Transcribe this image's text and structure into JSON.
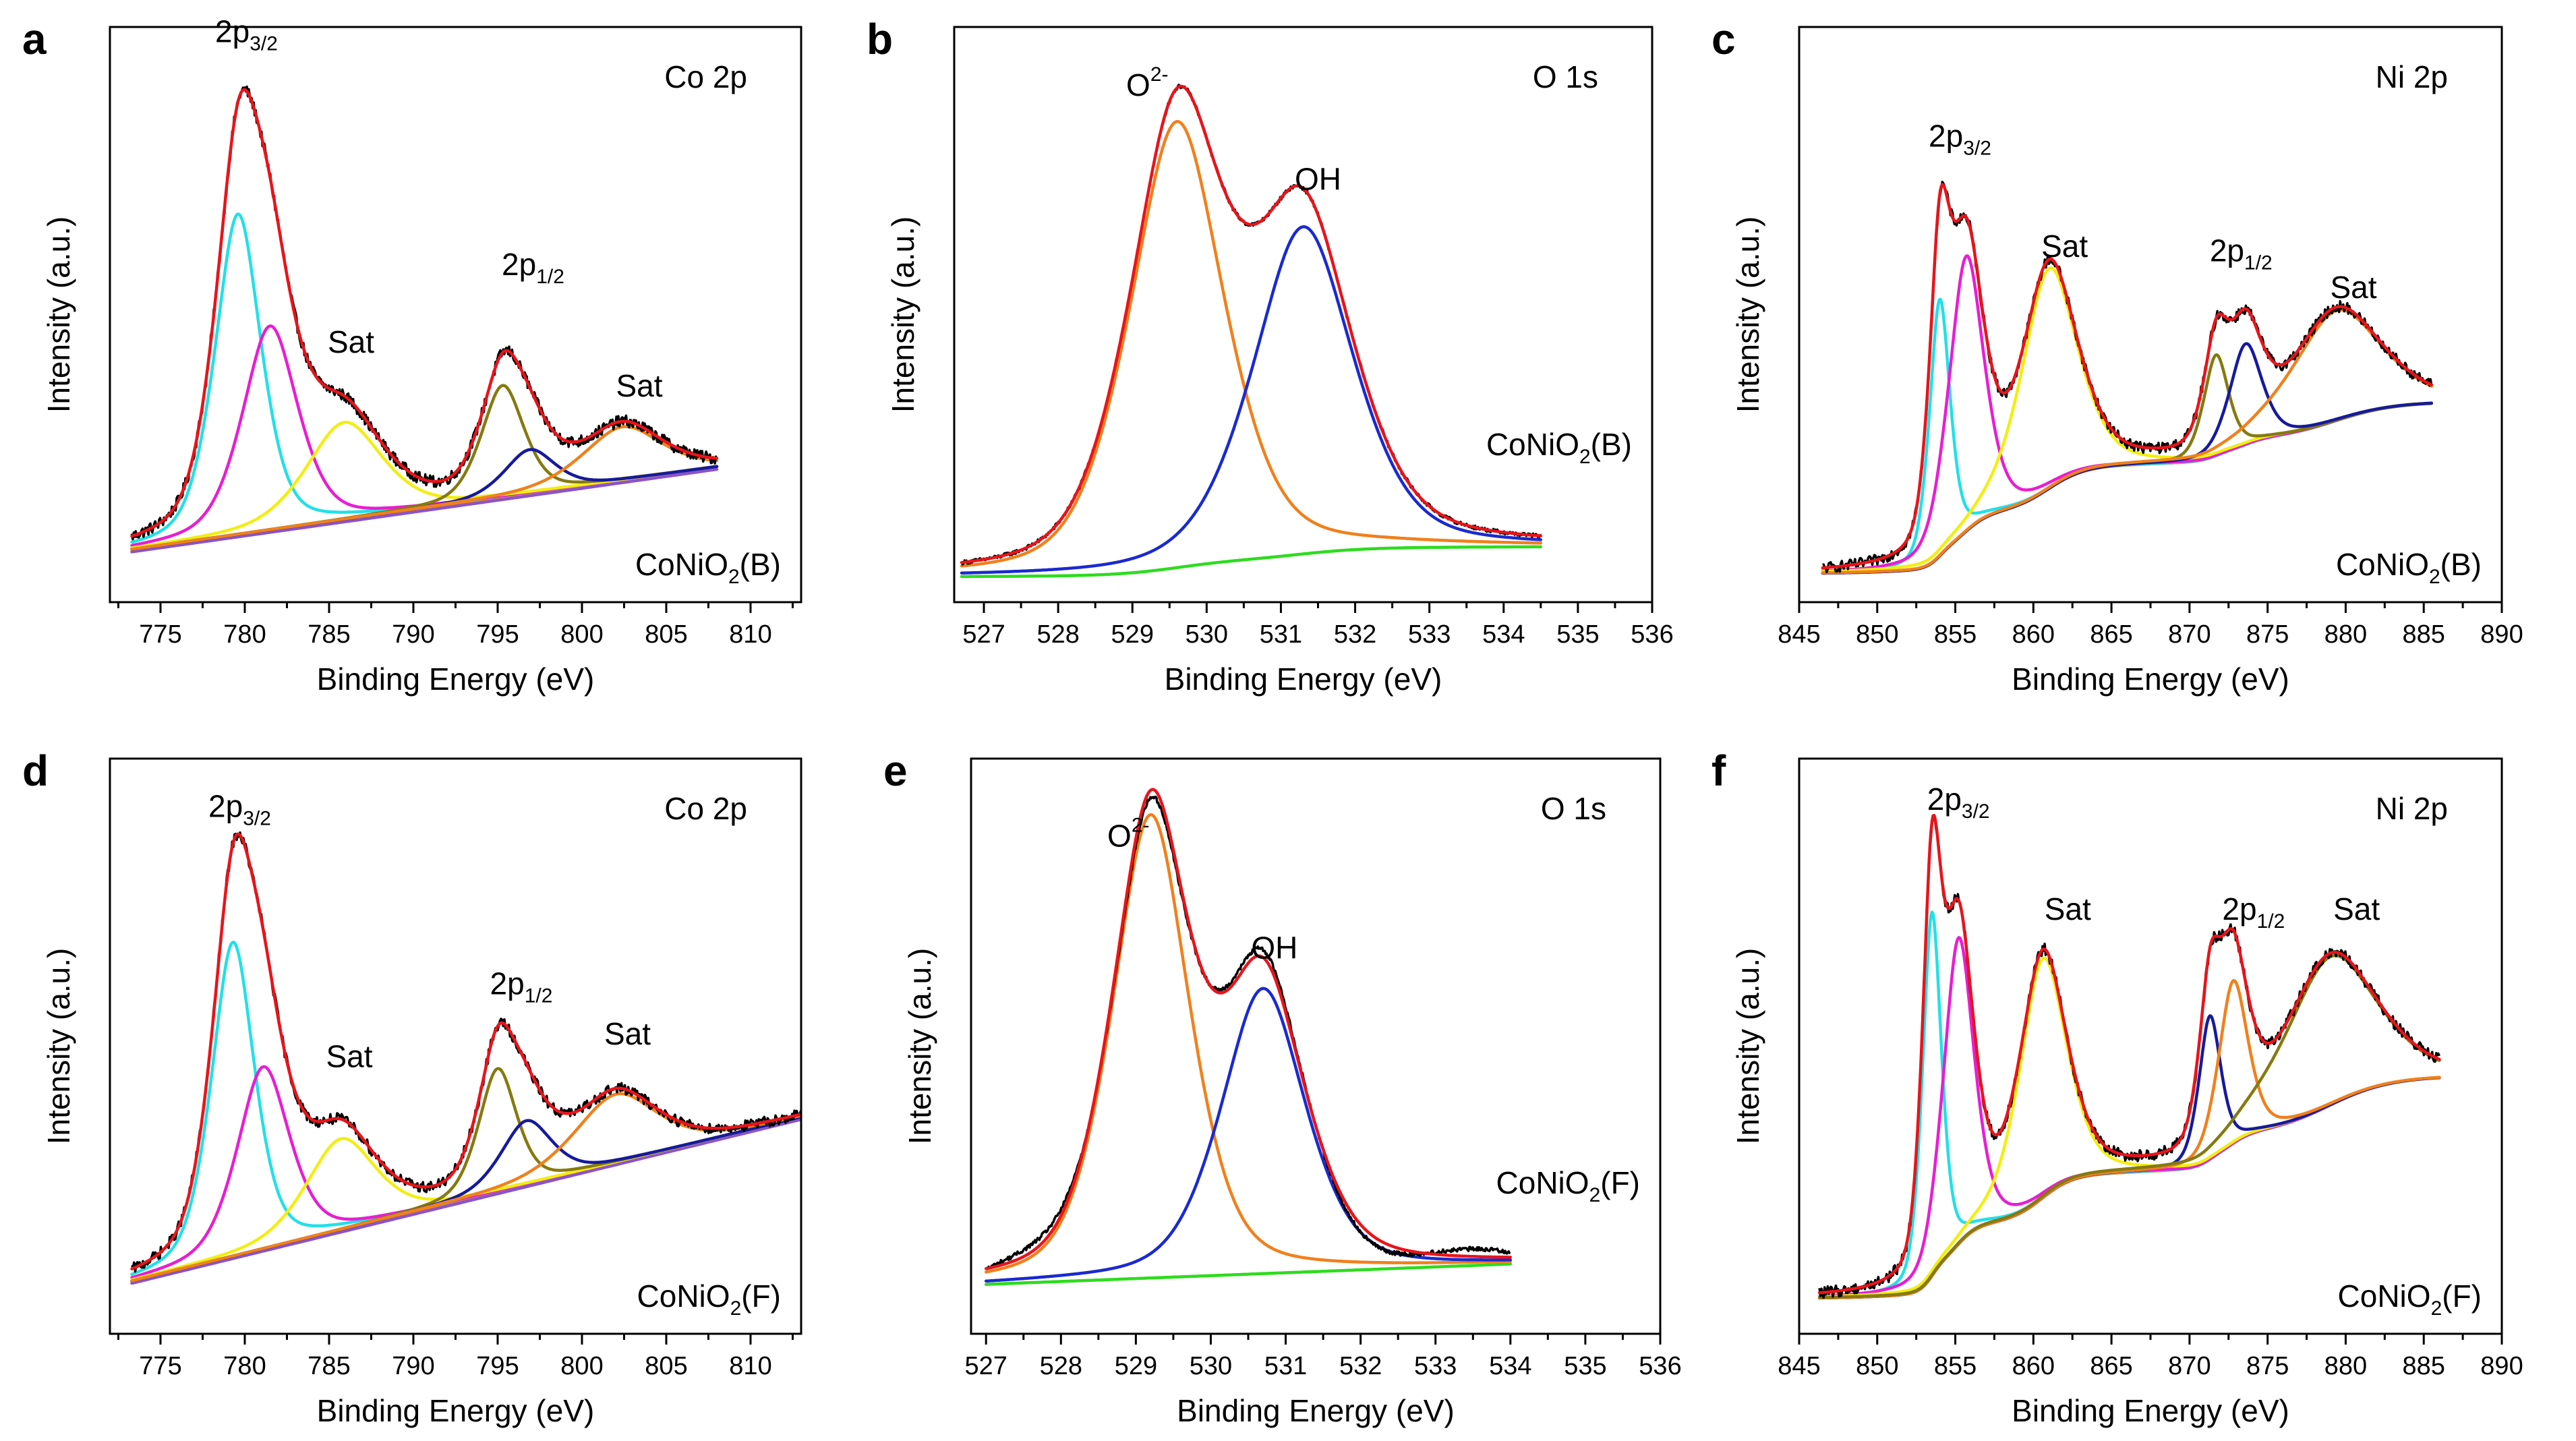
{
  "colors": {
    "experimental": "#000000",
    "envelope": "#e8141b",
    "background": "#2ddc1e",
    "cyan": "#22e0e8",
    "magenta": "#e81ed2",
    "yellow": "#f2ee10",
    "olive": "#857a10",
    "navy": "#161a9c",
    "orange": "#f0801c",
    "blue": "#1a2ad0",
    "purple": "#8a54c8"
  },
  "chart_data": [
    {
      "id": "a",
      "letter": "a",
      "type": "line",
      "xlabel": "Binding Energy (eV)",
      "ylabel": "Intensity (a.u.)",
      "xlim": [
        772,
        813
      ],
      "xticks": [
        775,
        780,
        785,
        790,
        795,
        800,
        805,
        810
      ],
      "title": "Co 2p",
      "sample": "CoNiO",
      "sample_sub": "2",
      "sample_tail": "(B)",
      "data_range": [
        773.3,
        808
      ],
      "background": {
        "type": "linear",
        "y0": 0.035,
        "y1": 0.205
      },
      "peaks": [
        {
          "name": "cyan-peak",
          "center": 779.6,
          "width": 1.45,
          "height": 0.66,
          "color": "#22e0e8"
        },
        {
          "name": "magenta-peak",
          "center": 781.5,
          "width": 1.75,
          "height": 0.42,
          "color": "#e81ed2"
        },
        {
          "name": "yellow-peak",
          "center": 785.9,
          "width": 2.4,
          "height": 0.2,
          "color": "#f2ee10"
        },
        {
          "name": "olive-peak",
          "center": 795.3,
          "width": 1.35,
          "height": 0.23,
          "color": "#857a10"
        },
        {
          "name": "navy-peak",
          "center": 796.9,
          "width": 1.6,
          "height": 0.09,
          "color": "#161a9c"
        },
        {
          "name": "orange-peak",
          "center": 802.4,
          "width": 2.5,
          "height": 0.11,
          "color": "#f0801c"
        }
      ],
      "extra_background": {
        "name": "purple-baseline",
        "y0": 0.03,
        "y1": 0.2,
        "color": "#8a54c8"
      },
      "annotations": [
        {
          "label": "2p",
          "sub": "3/2",
          "x": 780.1,
          "y": 1.08
        },
        {
          "label": "Sat",
          "x": 786.3,
          "y": 0.44
        },
        {
          "label": "2p",
          "sub": "1/2",
          "x": 797.1,
          "y": 0.6
        },
        {
          "label": "Sat",
          "x": 803.4,
          "y": 0.35
        }
      ]
    },
    {
      "id": "b",
      "letter": "b",
      "type": "line",
      "xlabel": "Binding Energy (eV)",
      "ylabel": "Intensity (a.u.)",
      "xlim": [
        526.6,
        536
      ],
      "xticks": [
        527,
        528,
        529,
        530,
        531,
        532,
        533,
        534,
        535,
        536
      ],
      "title": "O 1s",
      "sample": "CoNiO",
      "sample_sub": "2",
      "sample_tail": "(B)",
      "data_range": [
        526.7,
        534.5
      ],
      "background": {
        "type": "shirley",
        "y0": 0.0,
        "y1": 0.06
      },
      "peaks": [
        {
          "name": "o2-peak",
          "center": 529.6,
          "width": 0.68,
          "height": 0.9,
          "color": "#f0801c"
        },
        {
          "name": "oh-peak",
          "center": 531.3,
          "width": 0.72,
          "height": 0.66,
          "color": "#1a2ad0"
        }
      ],
      "annotations": [
        {
          "label": "O",
          "sup": "2-",
          "x": 529.2,
          "y": 0.97
        },
        {
          "label": "OH",
          "x": 531.5,
          "y": 0.78
        }
      ]
    },
    {
      "id": "c",
      "letter": "c",
      "type": "line",
      "xlabel": "Binding Energy (eV)",
      "ylabel": "Intensity (a.u.)",
      "xlim": [
        845,
        890
      ],
      "xticks": [
        845,
        850,
        855,
        860,
        865,
        870,
        875,
        880,
        885,
        890
      ],
      "title": "Ni 2p",
      "sample": "CoNiO",
      "sample_sub": "2",
      "sample_tail": "(B)",
      "data_range": [
        846.5,
        885.5
      ],
      "background": {
        "type": "shirley",
        "y0": 0.0,
        "y1": 0.37
      },
      "peaks": [
        {
          "name": "cyan-peak",
          "center": 854.0,
          "width": 0.7,
          "height": 0.56,
          "color": "#22e0e8"
        },
        {
          "name": "magenta-peak",
          "center": 855.7,
          "width": 1.2,
          "height": 0.6,
          "color": "#e81ed2"
        },
        {
          "name": "yellow-peak",
          "center": 861.0,
          "width": 1.9,
          "height": 0.48,
          "color": "#f2ee10"
        },
        {
          "name": "olive-peak",
          "center": 871.7,
          "width": 0.85,
          "height": 0.22,
          "color": "#857a10"
        },
        {
          "name": "navy-peak",
          "center": 873.6,
          "width": 1.1,
          "height": 0.22,
          "color": "#161a9c"
        },
        {
          "name": "orange-peak",
          "center": 879.4,
          "width": 3.0,
          "height": 0.24,
          "color": "#f0801c"
        }
      ],
      "annotations": [
        {
          "label": "2p",
          "sub": "3/2",
          "x": 855.3,
          "y": 0.93
        },
        {
          "label": "Sat",
          "x": 862.0,
          "y": 0.69
        },
        {
          "label": "2p",
          "sub": "1/2",
          "x": 873.3,
          "y": 0.68
        },
        {
          "label": "Sat",
          "x": 880.5,
          "y": 0.6
        }
      ]
    },
    {
      "id": "d",
      "letter": "d",
      "type": "line",
      "xlabel": "Binding Energy (eV)",
      "ylabel": "Intensity (a.u.)",
      "xlim": [
        772,
        813
      ],
      "xticks": [
        775,
        780,
        785,
        790,
        795,
        800,
        805,
        810
      ],
      "title": "Co 2p",
      "sample": "CoNiO",
      "sample_sub": "2",
      "sample_tail": "(F)",
      "data_range": [
        773.3,
        813
      ],
      "background": {
        "type": "linear",
        "y0": 0.03,
        "y1": 0.39
      },
      "peaks": [
        {
          "name": "cyan-peak",
          "center": 779.3,
          "width": 1.35,
          "height": 0.69,
          "color": "#22e0e8"
        },
        {
          "name": "magenta-peak",
          "center": 781.1,
          "width": 1.65,
          "height": 0.4,
          "color": "#e81ed2"
        },
        {
          "name": "yellow-peak",
          "center": 785.7,
          "width": 2.2,
          "height": 0.2,
          "color": "#f2ee10"
        },
        {
          "name": "olive-peak",
          "center": 795.0,
          "width": 1.2,
          "height": 0.27,
          "color": "#857a10"
        },
        {
          "name": "navy-peak",
          "center": 796.7,
          "width": 1.6,
          "height": 0.14,
          "color": "#161a9c"
        },
        {
          "name": "orange-peak",
          "center": 802.0,
          "width": 2.6,
          "height": 0.15,
          "color": "#f0801c"
        }
      ],
      "extra_background": {
        "name": "purple-baseline",
        "y0": 0.025,
        "y1": 0.385,
        "color": "#8a54c8"
      },
      "annotations": [
        {
          "label": "2p",
          "sub": "3/2",
          "x": 779.7,
          "y": 1.05
        },
        {
          "label": "Sat",
          "x": 786.2,
          "y": 0.5
        },
        {
          "label": "2p",
          "sub": "1/2",
          "x": 796.4,
          "y": 0.66
        },
        {
          "label": "Sat",
          "x": 802.7,
          "y": 0.55
        }
      ]
    },
    {
      "id": "e",
      "letter": "e",
      "type": "line",
      "xlabel": "Binding Energy (eV)",
      "ylabel": "Intensity (a.u.)",
      "xlim": [
        526.8,
        536
      ],
      "xticks": [
        527,
        528,
        529,
        530,
        531,
        532,
        533,
        534,
        535,
        536
      ],
      "title": "O 1s",
      "sample": "CoNiO",
      "sample_sub": "2",
      "sample_tail": "(F)",
      "data_range": [
        527.0,
        534.0
      ],
      "background": {
        "type": "linear",
        "y0": 0.06,
        "y1": 0.1
      },
      "peaks": [
        {
          "name": "o2-peak",
          "center": 529.2,
          "width": 0.55,
          "height": 0.91,
          "color": "#f0801c"
        },
        {
          "name": "oh-peak",
          "center": 530.7,
          "width": 0.6,
          "height": 0.56,
          "color": "#1a2ad0"
        }
      ],
      "annotations": [
        {
          "label": "O",
          "sup": "2-",
          "x": 528.9,
          "y": 0.92
        },
        {
          "label": "OH",
          "x": 530.85,
          "y": 0.7
        }
      ]
    },
    {
      "id": "f",
      "letter": "f",
      "type": "line",
      "xlabel": "Binding Energy (eV)",
      "ylabel": "Intensity (a.u.)",
      "xlim": [
        845,
        890
      ],
      "xticks": [
        845,
        850,
        855,
        860,
        865,
        870,
        875,
        880,
        885,
        890
      ],
      "title": "Ni 2p",
      "sample": "CoNiO",
      "sample_sub": "2",
      "sample_tail": "(F)",
      "data_range": [
        846.3,
        886
      ],
      "background": {
        "type": "shirley",
        "y0": 0.0,
        "y1": 0.46
      },
      "peaks": [
        {
          "name": "cyan-peak",
          "center": 853.5,
          "width": 0.65,
          "height": 0.76,
          "color": "#22e0e8"
        },
        {
          "name": "magenta-peak",
          "center": 855.2,
          "width": 1.05,
          "height": 0.64,
          "color": "#e81ed2"
        },
        {
          "name": "yellow-peak",
          "center": 860.6,
          "width": 1.6,
          "height": 0.5,
          "color": "#f2ee10"
        },
        {
          "name": "navy-peak",
          "center": 871.3,
          "width": 0.75,
          "height": 0.3,
          "color": "#161a9c"
        },
        {
          "name": "orange-peak",
          "center": 872.8,
          "width": 1.0,
          "height": 0.34,
          "color": "#f0801c"
        },
        {
          "name": "olive-peak",
          "center": 879.0,
          "width": 3.1,
          "height": 0.31,
          "color": "#857a10"
        }
      ],
      "annotations": [
        {
          "label": "2p",
          "sub": "3/2",
          "x": 855.2,
          "y": 1.02
        },
        {
          "label": "Sat",
          "x": 862.2,
          "y": 0.79
        },
        {
          "label": "2p",
          "sub": "1/2",
          "x": 874.1,
          "y": 0.79
        },
        {
          "label": "Sat",
          "x": 880.7,
          "y": 0.79
        }
      ]
    }
  ]
}
